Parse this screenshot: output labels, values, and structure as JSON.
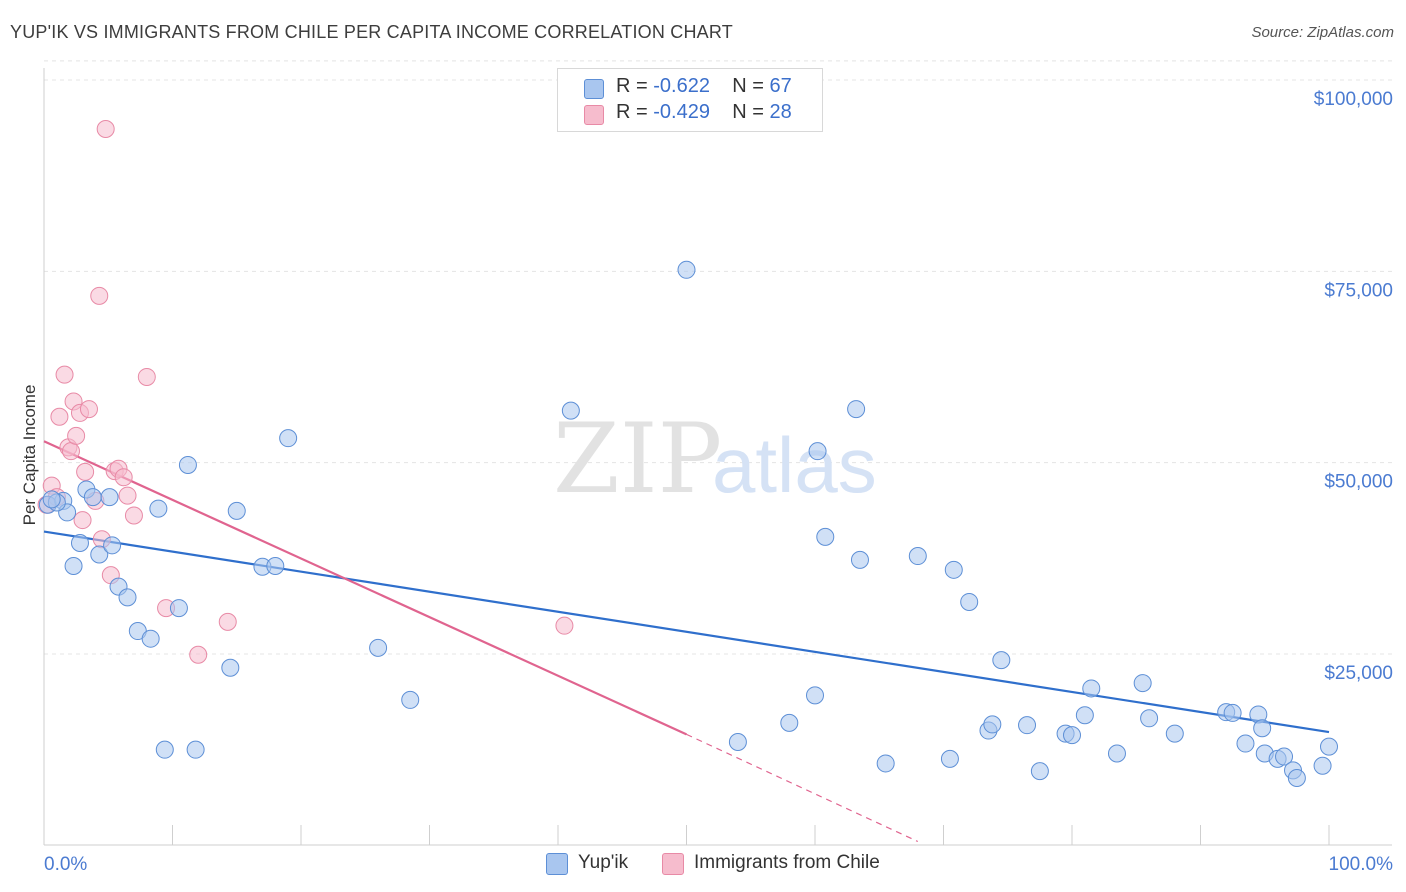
{
  "title": "YUP'IK VS IMMIGRANTS FROM CHILE PER CAPITA INCOME CORRELATION CHART",
  "source": "Source: ZipAtlas.com",
  "watermark": {
    "zip": "ZIP",
    "atlas": "atlas"
  },
  "colors": {
    "blue_fill": "#a9c6ef",
    "blue_stroke": "#5d8fd6",
    "blue_line": "#2f6fcc",
    "pink_fill": "#f6bccd",
    "pink_stroke": "#e88aa6",
    "pink_line": "#e0648f"
  },
  "legend": {
    "rows": [
      {
        "r_label": "R = ",
        "r_value": "-0.622",
        "n_label": "N = ",
        "n_value": "67"
      },
      {
        "r_label": "R = ",
        "r_value": "-0.429",
        "n_label": "N = ",
        "n_value": "28"
      }
    ]
  },
  "bottom_legend": {
    "series1": "Yup'ik",
    "series2": "Immigrants from Chile"
  },
  "chart_data": {
    "type": "scatter",
    "ylabel": "Per Capita Income",
    "xlabel": "",
    "xlim": [
      0,
      100
    ],
    "ylim": [
      0,
      105000
    ],
    "x_tick_labels": {
      "left": "0.0%",
      "right": "100.0%"
    },
    "y_ticks": [
      {
        "value": 25000,
        "label": "$25,000"
      },
      {
        "value": 50000,
        "label": "$50,000"
      },
      {
        "value": 75000,
        "label": "$75,000"
      },
      {
        "value": 100000,
        "label": "$100,000"
      }
    ],
    "series": [
      {
        "name": "Yup'ik",
        "color": "#a9c6ef",
        "trend": {
          "x0": 0,
          "y0": 41000,
          "x1": 100,
          "y1": 14800
        },
        "points": [
          [
            0.3,
            44500
          ],
          [
            1.5,
            45000
          ],
          [
            1.8,
            43500
          ],
          [
            2.3,
            36500
          ],
          [
            2.8,
            39500
          ],
          [
            3.3,
            46500
          ],
          [
            3.8,
            45500
          ],
          [
            4.3,
            38000
          ],
          [
            5.1,
            45500
          ],
          [
            5.3,
            39200
          ],
          [
            5.8,
            33800
          ],
          [
            6.5,
            32400
          ],
          [
            7.3,
            28000
          ],
          [
            8.3,
            27000
          ],
          [
            8.9,
            44000
          ],
          [
            9.4,
            12500
          ],
          [
            10.5,
            31000
          ],
          [
            11.2,
            49700
          ],
          [
            11.8,
            12500
          ],
          [
            14.5,
            23200
          ],
          [
            15.0,
            43700
          ],
          [
            17.0,
            36400
          ],
          [
            18.0,
            36500
          ],
          [
            19.0,
            53200
          ],
          [
            26.0,
            25800
          ],
          [
            28.5,
            19000
          ],
          [
            41.0,
            56800
          ],
          [
            50.0,
            75200
          ],
          [
            54.0,
            13500
          ],
          [
            58.0,
            16000
          ],
          [
            60.0,
            19600
          ],
          [
            60.2,
            51500
          ],
          [
            60.8,
            40300
          ],
          [
            63.2,
            57000
          ],
          [
            63.5,
            37300
          ],
          [
            65.5,
            10700
          ],
          [
            68.0,
            37800
          ],
          [
            70.5,
            11300
          ],
          [
            70.8,
            36000
          ],
          [
            72.0,
            31800
          ],
          [
            73.5,
            15000
          ],
          [
            73.8,
            15800
          ],
          [
            74.5,
            24200
          ],
          [
            76.5,
            15700
          ],
          [
            77.5,
            9700
          ],
          [
            79.5,
            14600
          ],
          [
            80.0,
            14400
          ],
          [
            81.0,
            17000
          ],
          [
            81.5,
            20500
          ],
          [
            83.5,
            12000
          ],
          [
            85.5,
            21200
          ],
          [
            86.0,
            16600
          ],
          [
            88.0,
            14600
          ],
          [
            92.0,
            17400
          ],
          [
            92.5,
            17300
          ],
          [
            93.5,
            13300
          ],
          [
            94.5,
            17100
          ],
          [
            94.8,
            15300
          ],
          [
            95.0,
            12000
          ],
          [
            96.0,
            11300
          ],
          [
            96.5,
            11600
          ],
          [
            97.2,
            9800
          ],
          [
            97.5,
            8800
          ],
          [
            99.5,
            10400
          ],
          [
            100.0,
            12900
          ],
          [
            1.0,
            44800
          ],
          [
            0.6,
            45200
          ]
        ]
      },
      {
        "name": "Immigrants from Chile",
        "color": "#f6bccd",
        "trend": {
          "x0": 0,
          "y0": 52800,
          "x1": 50,
          "y1": 14500
        },
        "trend_dashed": {
          "x0": 50,
          "y0": 14500,
          "x1": 68,
          "y1": 500
        },
        "points": [
          [
            0.2,
            44500
          ],
          [
            0.6,
            47000
          ],
          [
            1.2,
            56000
          ],
          [
            1.6,
            61500
          ],
          [
            1.9,
            52000
          ],
          [
            2.1,
            51500
          ],
          [
            2.3,
            58000
          ],
          [
            2.5,
            53500
          ],
          [
            2.8,
            56500
          ],
          [
            3.0,
            42500
          ],
          [
            3.2,
            48800
          ],
          [
            3.5,
            57000
          ],
          [
            4.0,
            45000
          ],
          [
            4.3,
            71800
          ],
          [
            4.5,
            40000
          ],
          [
            4.8,
            93600
          ],
          [
            5.2,
            35300
          ],
          [
            5.5,
            48900
          ],
          [
            5.8,
            49200
          ],
          [
            6.2,
            48100
          ],
          [
            6.5,
            45700
          ],
          [
            7.0,
            43100
          ],
          [
            8.0,
            61200
          ],
          [
            9.5,
            31000
          ],
          [
            12.0,
            24900
          ],
          [
            14.3,
            29200
          ],
          [
            40.5,
            28700
          ],
          [
            1.0,
            45500
          ]
        ]
      }
    ]
  }
}
